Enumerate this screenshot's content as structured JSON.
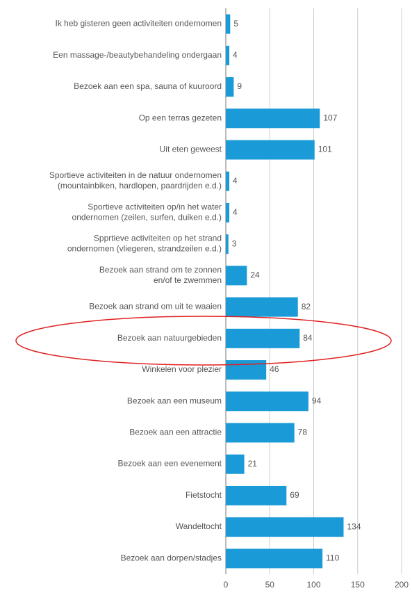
{
  "chart_data": {
    "type": "barh",
    "categories": [
      [
        "Ik heb gisteren geen activiteiten ondernomen"
      ],
      [
        "Een massage-/beautybehandeling ondergaan"
      ],
      [
        "Bezoek aan een spa, sauna of kuuroord"
      ],
      [
        "Op een terras gezeten"
      ],
      [
        "Uit eten geweest"
      ],
      [
        "Sportieve activiteiten in de natuur ondernomen",
        "(mountainbiken, hardlopen, paardrijden e.d.)"
      ],
      [
        "Sportieve activiteiten op/in het water",
        "ondernomen (zeilen, surfen, duiken e.d.)"
      ],
      [
        "Spprtieve activiteiten op het strand",
        "ondernomen (vliegeren, strandzeilen e.d.)"
      ],
      [
        "Bezoek aan strand om te zonnen",
        "en/of te zwemmen"
      ],
      [
        "Bezoek aan strand om uit te waaien"
      ],
      [
        "Bezoek aan natuurgebieden"
      ],
      [
        "Winkelen voor plezier"
      ],
      [
        "Bezoek aan een museum"
      ],
      [
        "Bezoek aan een attractie"
      ],
      [
        "Bezoek aan een evenement"
      ],
      [
        "Fietstocht"
      ],
      [
        "Wandeltocht"
      ],
      [
        "Bezoek aan dorpen/stadjes"
      ]
    ],
    "values": [
      5,
      4,
      9,
      107,
      101,
      4,
      4,
      3,
      24,
      82,
      84,
      46,
      94,
      78,
      21,
      69,
      134,
      110
    ],
    "color": "#1a9ad6",
    "xlim": [
      0,
      200
    ],
    "xticks": [
      0,
      50,
      100,
      150,
      200
    ],
    "grid": true
  }
}
